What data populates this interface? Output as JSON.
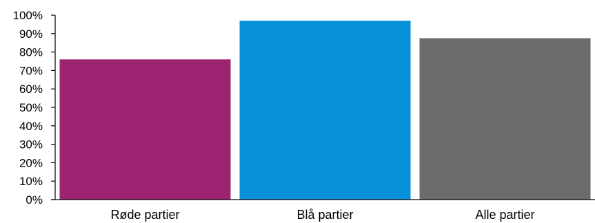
{
  "chart_data": {
    "type": "bar",
    "categories": [
      "Røde partier",
      "Blå partier",
      "Alle partier"
    ],
    "values": [
      76,
      97,
      87.5
    ],
    "colors": [
      "#9b2370",
      "#0890d8",
      "#6c6c6c"
    ],
    "y_ticks": [
      "0%",
      "10%",
      "20%",
      "30%",
      "40%",
      "50%",
      "60%",
      "70%",
      "80%",
      "90%",
      "100%"
    ],
    "ylim": [
      0,
      100
    ],
    "title": "",
    "xlabel": "",
    "ylabel": "",
    "grid": false,
    "legend": "none"
  }
}
